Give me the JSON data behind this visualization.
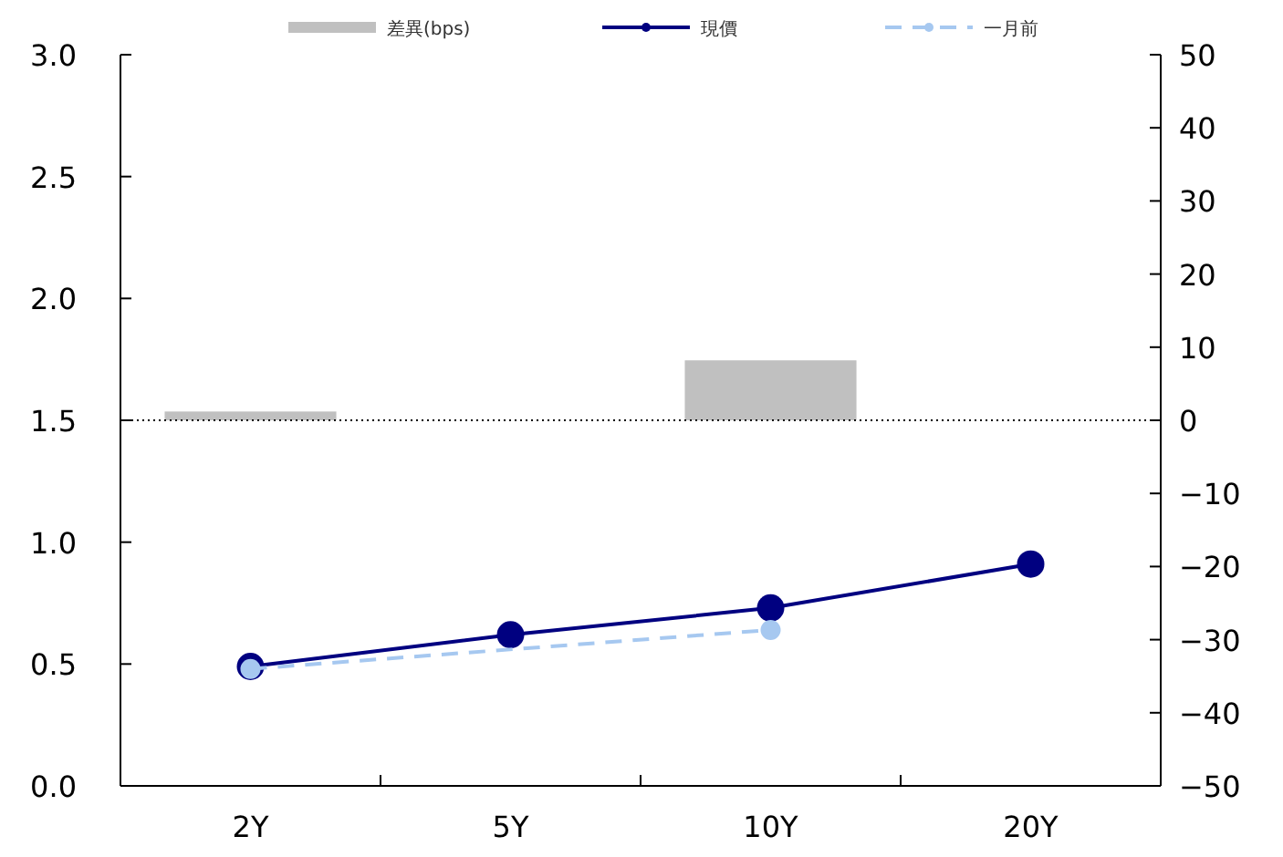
{
  "chart_data": {
    "type": "line",
    "categories": [
      "2Y",
      "5Y",
      "10Y",
      "20Y"
    ],
    "series": [
      {
        "name": "差異(bps)",
        "type": "bar",
        "axis": "y2",
        "color": "#c0c0c0",
        "values": [
          1.2,
          null,
          8.2,
          null
        ]
      },
      {
        "name": "現價",
        "color": "#000080",
        "marker": "circle",
        "line_style": "solid",
        "values": [
          0.49,
          0.62,
          0.73,
          0.91
        ]
      },
      {
        "name": "一月前",
        "color": "#a6c8f0",
        "marker": "circle",
        "line_style": "dashed",
        "values": [
          0.48,
          null,
          0.64,
          null
        ]
      }
    ],
    "ylim": [
      0,
      3
    ],
    "yticks": [
      {
        "value": 0,
        "label": "0.0"
      },
      {
        "value": 0.5,
        "label": "0.5"
      },
      {
        "value": 1,
        "label": "1.0"
      },
      {
        "value": 1.5,
        "label": "1.5"
      },
      {
        "value": 2,
        "label": "2.0"
      },
      {
        "value": 2.5,
        "label": "2.5"
      },
      {
        "value": 3,
        "label": "3.0"
      }
    ],
    "y2lim": [
      -50,
      50
    ],
    "y2ticks": [
      -50,
      -40,
      -30,
      -20,
      -10,
      0,
      10,
      20,
      30,
      40,
      50
    ],
    "ref_lines": [
      {
        "axis": "y2",
        "value": 0,
        "line_style": "dotted",
        "color": "#000000"
      }
    ],
    "legend": "top",
    "grid": false
  }
}
